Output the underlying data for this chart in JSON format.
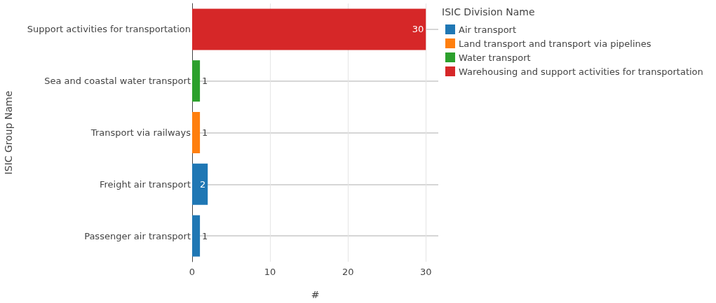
{
  "chart_data": {
    "type": "bar",
    "orientation": "horizontal",
    "stacked": true,
    "xlabel": "#",
    "ylabel": "ISIC Group Name",
    "legend_title": "ISIC Division Name",
    "categories": [
      "Support activities for transportation",
      "Sea and coastal water transport",
      "Transport via railways",
      "Freight air transport",
      "Passenger air transport"
    ],
    "series": [
      {
        "name": "Air transport",
        "color": "#1f77b4",
        "values": [
          null,
          null,
          null,
          2,
          1
        ]
      },
      {
        "name": "Land transport and transport via pipelines",
        "color": "#ff7f0e",
        "values": [
          null,
          null,
          1,
          null,
          null
        ]
      },
      {
        "name": "Water transport",
        "color": "#2ca02c",
        "values": [
          null,
          1,
          null,
          null,
          null
        ]
      },
      {
        "name": "Warehousing and support activities for transportation",
        "color": "#d62728",
        "values": [
          30,
          null,
          null,
          null,
          null
        ]
      }
    ],
    "xlim": [
      0,
      31.6
    ],
    "xticks": [
      0,
      10,
      20,
      30
    ],
    "grid": true,
    "legend": "right",
    "data_labels": true
  }
}
